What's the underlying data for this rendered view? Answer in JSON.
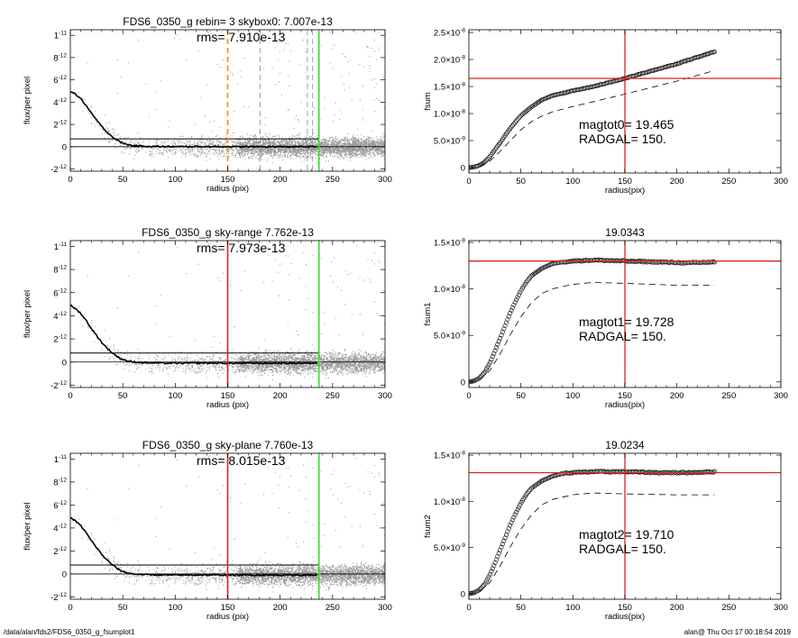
{
  "footer": {
    "path": "/data/alan/fds2/FDS6_0350_g_fsumplot1",
    "timestamp": "alan@  Thu Oct 17 00:18:54 2019"
  },
  "colors": {
    "sky_level_line": "#000000",
    "radgal_line": "#dd2222",
    "outer_radius_line": "#33dd33",
    "rebin_marker": "#ff8800",
    "points": "#999999"
  },
  "chart_data": [
    {
      "type": "scatter",
      "title": "FDS6_0350_g rebin= 3    skybox0:  7.007e-13",
      "annotation": "rms= 7.910e-13",
      "xlabel": "radius (pix)",
      "ylabel": "flux/per pixel",
      "xlim": [
        0,
        300
      ],
      "ylim": [
        -2.2e-12,
        1.05e-11
      ],
      "xticks": [
        "0",
        "50",
        "100",
        "150",
        "200",
        "250",
        "300"
      ],
      "yticks": [
        {
          "v": -2e-12,
          "m": "-2",
          "e": "-12"
        },
        {
          "v": 0,
          "m": "0",
          "e": ""
        },
        {
          "v": 2e-12,
          "m": "2",
          "e": "-12"
        },
        {
          "v": 4e-12,
          "m": "4",
          "e": "-12"
        },
        {
          "v": 6e-12,
          "m": "6",
          "e": "-12"
        },
        {
          "v": 8e-12,
          "m": "8",
          "e": "-12"
        },
        {
          "v": 1e-11,
          "m": "1",
          "e": "-11"
        }
      ],
      "profile": {
        "x": [
          0,
          5,
          10,
          15,
          20,
          25,
          30,
          35,
          40,
          45,
          50,
          55,
          60,
          70,
          80,
          100,
          120,
          150,
          200,
          235
        ],
        "y": [
          5e-12,
          4.7e-12,
          4.3e-12,
          3.7e-12,
          3e-12,
          2.4e-12,
          1.8e-12,
          1.3e-12,
          9e-13,
          5.5e-13,
          3.2e-13,
          1.8e-13,
          1e-13,
          5e-14,
          2e-14,
          0,
          1e-14,
          0,
          0,
          0
        ]
      },
      "sky_level": 7.007e-13,
      "zero_line": 0,
      "vlines": [
        {
          "x": 150,
          "role": "rebin_marker",
          "style": "dashed"
        },
        {
          "x": 181,
          "role": "grey",
          "style": "dashed"
        },
        {
          "x": 226,
          "role": "grey",
          "style": "dashed"
        },
        {
          "x": 231,
          "role": "grey",
          "style": "dashed"
        },
        {
          "x": 237,
          "role": "outer_radius_line",
          "style": "solid"
        }
      ]
    },
    {
      "type": "line",
      "title": "",
      "xlabel": "radius(pix)",
      "ylabel": "fsum",
      "xlim": [
        0,
        300
      ],
      "ylim": [
        -1e-09,
        2.55e-08
      ],
      "xticks": [
        "0",
        "50",
        "100",
        "150",
        "200",
        "250",
        "300"
      ],
      "yticks": [
        {
          "v": 0,
          "m": "0",
          "e": ""
        },
        {
          "v": 5e-09,
          "m": "5.0×10",
          "e": "-9"
        },
        {
          "v": 1e-08,
          "m": "1.0×10",
          "e": "-8"
        },
        {
          "v": 1.5e-08,
          "m": "1.5×10",
          "e": "-8"
        },
        {
          "v": 2e-08,
          "m": "2.0×10",
          "e": "-8"
        },
        {
          "v": 2.5e-08,
          "m": "2.5×10",
          "e": "-8"
        }
      ],
      "cumulative": {
        "x": [
          0,
          5,
          10,
          15,
          20,
          25,
          30,
          35,
          40,
          45,
          50,
          60,
          70,
          80,
          100,
          120,
          150,
          200,
          237
        ],
        "y": [
          0,
          1e-10,
          4e-10,
          1e-09,
          2e-09,
          3.3e-09,
          4.6e-09,
          6e-09,
          7.3e-09,
          8.5e-09,
          9.6e-09,
          1.12e-08,
          1.25e-08,
          1.33e-08,
          1.42e-08,
          1.5e-08,
          1.65e-08,
          1.92e-08,
          2.15e-08
        ]
      },
      "dashed_curve": {
        "x": [
          0,
          10,
          20,
          30,
          40,
          50,
          60,
          70,
          80,
          100,
          120,
          150,
          200,
          237
        ],
        "y": [
          0,
          2e-10,
          1.2e-09,
          3e-09,
          5e-09,
          7e-09,
          8.5e-09,
          9.5e-09,
          1.03e-08,
          1.13e-08,
          1.22e-08,
          1.36e-08,
          1.6e-08,
          1.8e-08
        ]
      },
      "hline": 1.65e-08,
      "vline": 150,
      "annotations": [
        "magtot0=  19.465",
        "RADGAL=    150."
      ]
    },
    {
      "type": "scatter",
      "title": "FDS6_0350_g sky-range  7.762e-13",
      "annotation": "rms= 7.973e-13",
      "xlabel": "radius (pix)",
      "ylabel": "flux/per pixel",
      "xlim": [
        0,
        300
      ],
      "ylim": [
        -2.2e-12,
        1.05e-11
      ],
      "xticks": [
        "0",
        "50",
        "100",
        "150",
        "200",
        "250",
        "300"
      ],
      "yticks": [
        {
          "v": -2e-12,
          "m": "-2",
          "e": "-12"
        },
        {
          "v": 0,
          "m": "0",
          "e": ""
        },
        {
          "v": 2e-12,
          "m": "2",
          "e": "-12"
        },
        {
          "v": 4e-12,
          "m": "4",
          "e": "-12"
        },
        {
          "v": 6e-12,
          "m": "6",
          "e": "-12"
        },
        {
          "v": 8e-12,
          "m": "8",
          "e": "-12"
        },
        {
          "v": 1e-11,
          "m": "1",
          "e": "-11"
        }
      ],
      "profile": {
        "x": [
          0,
          5,
          10,
          15,
          20,
          25,
          30,
          35,
          40,
          45,
          50,
          55,
          60,
          70,
          80,
          100,
          120,
          150,
          200,
          235
        ],
        "y": [
          4.9e-12,
          4.6e-12,
          4.2e-12,
          3.6e-12,
          2.9e-12,
          2.3e-12,
          1.7e-12,
          1.2e-12,
          8e-13,
          4.5e-13,
          2.2e-13,
          8e-14,
          0,
          -5e-14,
          -8e-14,
          -1e-13,
          -9e-14,
          -1e-13,
          -1e-13,
          -1e-13
        ]
      },
      "sky_level": 7.762e-13,
      "zero_line": 0,
      "vlines": [
        {
          "x": 150,
          "role": "radgal_line",
          "style": "solid"
        },
        {
          "x": 237,
          "role": "outer_radius_line",
          "style": "solid"
        }
      ]
    },
    {
      "type": "line",
      "title": "19.0343",
      "xlabel": "radius(pix)",
      "ylabel": "fsum1",
      "xlim": [
        0,
        300
      ],
      "ylim": [
        -6e-10,
        1.52e-08
      ],
      "xticks": [
        "0",
        "50",
        "100",
        "150",
        "200",
        "250",
        "300"
      ],
      "yticks": [
        {
          "v": 0,
          "m": "0",
          "e": ""
        },
        {
          "v": 5e-09,
          "m": "5.0×10",
          "e": "-9"
        },
        {
          "v": 1e-08,
          "m": "1.0×10",
          "e": "-8"
        },
        {
          "v": 1.5e-08,
          "m": "1.5×10",
          "e": "-8"
        }
      ],
      "cumulative": {
        "x": [
          0,
          5,
          10,
          15,
          20,
          25,
          30,
          35,
          40,
          45,
          50,
          55,
          60,
          70,
          80,
          90,
          100,
          120,
          150,
          180,
          210,
          237
        ],
        "y": [
          0,
          1e-10,
          4e-10,
          1e-09,
          2e-09,
          3.3e-09,
          4.7e-09,
          6.1e-09,
          7.5e-09,
          8.7e-09,
          9.8e-09,
          1.07e-08,
          1.14e-08,
          1.22e-08,
          1.27e-08,
          1.29e-08,
          1.3e-08,
          1.31e-08,
          1.3e-08,
          1.29e-08,
          1.28e-08,
          1.29e-08
        ]
      },
      "dashed_curve": {
        "x": [
          0,
          10,
          20,
          30,
          40,
          50,
          60,
          70,
          80,
          100,
          120,
          150,
          200,
          237
        ],
        "y": [
          0,
          2e-10,
          1.2e-09,
          3e-09,
          5.1e-09,
          7e-09,
          8.5e-09,
          9.5e-09,
          1e-08,
          1.05e-08,
          1.07e-08,
          1.06e-08,
          1.04e-08,
          1.04e-08
        ]
      },
      "hline": 1.3e-08,
      "vline": 150,
      "annotations": [
        "magtot1=  19.728",
        "RADGAL=    150."
      ]
    },
    {
      "type": "scatter",
      "title": "FDS6_0350_g sky-plane  7.760e-13",
      "annotation": "rms= 8.015e-13",
      "xlabel": "radius (pix)",
      "ylabel": "flux/per pixel",
      "xlim": [
        0,
        300
      ],
      "ylim": [
        -2.2e-12,
        1.05e-11
      ],
      "xticks": [
        "0",
        "50",
        "100",
        "150",
        "200",
        "250",
        "300"
      ],
      "yticks": [
        {
          "v": -2e-12,
          "m": "-2",
          "e": "-12"
        },
        {
          "v": 0,
          "m": "0",
          "e": ""
        },
        {
          "v": 2e-12,
          "m": "2",
          "e": "-12"
        },
        {
          "v": 4e-12,
          "m": "4",
          "e": "-12"
        },
        {
          "v": 6e-12,
          "m": "6",
          "e": "-12"
        },
        {
          "v": 8e-12,
          "m": "8",
          "e": "-12"
        },
        {
          "v": 1e-11,
          "m": "1",
          "e": "-11"
        }
      ],
      "profile": {
        "x": [
          0,
          5,
          10,
          15,
          20,
          25,
          30,
          35,
          40,
          45,
          50,
          55,
          60,
          70,
          80,
          100,
          120,
          150,
          200,
          235
        ],
        "y": [
          4.9e-12,
          4.6e-12,
          4.2e-12,
          3.6e-12,
          2.9e-12,
          2.3e-12,
          1.7e-12,
          1.2e-12,
          8e-13,
          4.5e-13,
          2.2e-13,
          8e-14,
          0,
          -5e-14,
          -8e-14,
          -1e-13,
          -9e-14,
          -1e-13,
          -1e-13,
          -1e-13
        ]
      },
      "sky_level": 7.76e-13,
      "zero_line": 0,
      "vlines": [
        {
          "x": 150,
          "role": "radgal_line",
          "style": "solid"
        },
        {
          "x": 237,
          "role": "outer_radius_line",
          "style": "solid"
        }
      ]
    },
    {
      "type": "line",
      "title": "19.0234",
      "xlabel": "radius(pix)",
      "ylabel": "fsum2",
      "xlim": [
        0,
        300
      ],
      "ylim": [
        -6e-10,
        1.52e-08
      ],
      "xticks": [
        "0",
        "50",
        "100",
        "150",
        "200",
        "250",
        "300"
      ],
      "yticks": [
        {
          "v": 0,
          "m": "0",
          "e": ""
        },
        {
          "v": 5e-09,
          "m": "5.0×10",
          "e": "-9"
        },
        {
          "v": 1e-08,
          "m": "1.0×10",
          "e": "-8"
        },
        {
          "v": 1.5e-08,
          "m": "1.5×10",
          "e": "-8"
        }
      ],
      "cumulative": {
        "x": [
          0,
          5,
          10,
          15,
          20,
          25,
          30,
          35,
          40,
          45,
          50,
          55,
          60,
          70,
          80,
          90,
          100,
          120,
          150,
          180,
          210,
          237
        ],
        "y": [
          0,
          1e-10,
          4e-10,
          1e-09,
          2e-09,
          3.3e-09,
          4.7e-09,
          6.1e-09,
          7.5e-09,
          8.7e-09,
          9.8e-09,
          1.07e-08,
          1.14e-08,
          1.22e-08,
          1.27e-08,
          1.3e-08,
          1.31e-08,
          1.32e-08,
          1.32e-08,
          1.31e-08,
          1.31e-08,
          1.32e-08
        ]
      },
      "dashed_curve": {
        "x": [
          0,
          10,
          20,
          30,
          40,
          50,
          60,
          70,
          80,
          100,
          120,
          150,
          200,
          237
        ],
        "y": [
          0,
          2e-10,
          1.2e-09,
          3e-09,
          5.1e-09,
          7e-09,
          8.5e-09,
          9.6e-09,
          1.02e-08,
          1.07e-08,
          1.09e-08,
          1.08e-08,
          1.07e-08,
          1.07e-08
        ]
      },
      "hline": 1.31e-08,
      "vline": 150,
      "annotations": [
        "magtot2=  19.710",
        "RADGAL=    150."
      ]
    }
  ]
}
